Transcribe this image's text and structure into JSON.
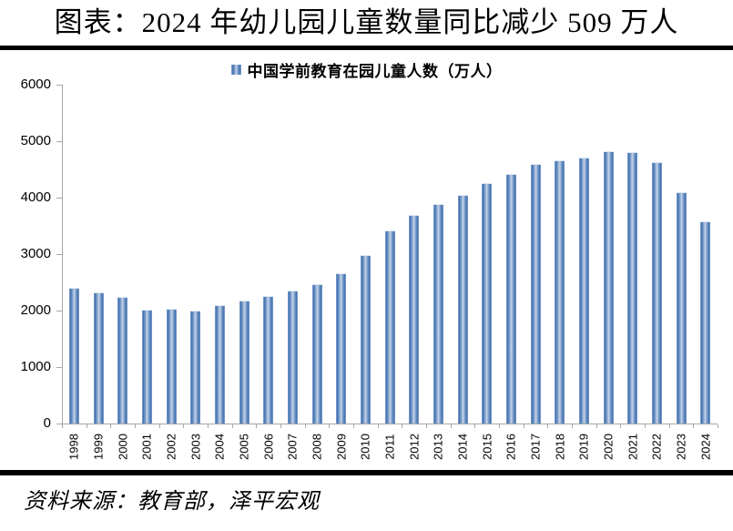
{
  "header": {
    "title": "图表：2024 年幼儿园儿童数量同比减少 509 万人"
  },
  "legend": {
    "label": "中国学前教育在园儿童人数（万人）"
  },
  "footer": {
    "source": "资料来源：教育部，泽平宏观"
  },
  "colors": {
    "bar_edge_light": "#86abdb",
    "bar_edge_dark": "#4470ab",
    "bar_center_light": "#c7d4e8",
    "axis_gray": "#a6a6a6",
    "rule_black": "#000000",
    "background": "#ffffff"
  },
  "chart_data": {
    "type": "bar",
    "title": "中国学前教育在园儿童人数（万人）",
    "xlabel": "",
    "ylabel": "",
    "categories": [
      "1998",
      "1999",
      "2000",
      "2001",
      "2002",
      "2003",
      "2004",
      "2005",
      "2006",
      "2007",
      "2008",
      "2009",
      "2010",
      "2011",
      "2012",
      "2013",
      "2014",
      "2015",
      "2016",
      "2017",
      "2018",
      "2019",
      "2020",
      "2021",
      "2022",
      "2023",
      "2024"
    ],
    "values": [
      2403,
      2326,
      2244,
      2022,
      2036,
      2004,
      2089,
      2179,
      2264,
      2349,
      2475,
      2658,
      2977,
      3424,
      3686,
      3895,
      4051,
      4265,
      4414,
      4600,
      4656,
      4714,
      4818,
      4805,
      4627,
      4093,
      3584
    ],
    "ylim": [
      0,
      6000
    ],
    "yticks": [
      0,
      1000,
      2000,
      3000,
      4000,
      5000,
      6000
    ],
    "grid": false,
    "legend_position": "top",
    "x_label_rotation": -90
  }
}
